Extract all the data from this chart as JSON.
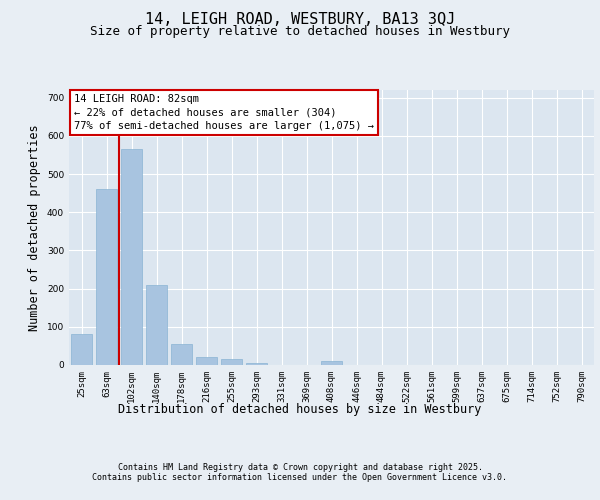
{
  "title1": "14, LEIGH ROAD, WESTBURY, BA13 3QJ",
  "title2": "Size of property relative to detached houses in Westbury",
  "xlabel": "Distribution of detached houses by size in Westbury",
  "ylabel": "Number of detached properties",
  "categories": [
    "25sqm",
    "63sqm",
    "102sqm",
    "140sqm",
    "178sqm",
    "216sqm",
    "255sqm",
    "293sqm",
    "331sqm",
    "369sqm",
    "408sqm",
    "446sqm",
    "484sqm",
    "522sqm",
    "561sqm",
    "599sqm",
    "637sqm",
    "675sqm",
    "714sqm",
    "752sqm",
    "790sqm"
  ],
  "values": [
    80,
    460,
    565,
    210,
    55,
    20,
    15,
    5,
    0,
    0,
    10,
    0,
    0,
    0,
    0,
    0,
    0,
    0,
    0,
    0,
    0
  ],
  "bar_color": "#a8c4e0",
  "bar_edge_color": "#8ab4d4",
  "vline_color": "#cc0000",
  "annotation_text": "14 LEIGH ROAD: 82sqm\n← 22% of detached houses are smaller (304)\n77% of semi-detached houses are larger (1,075) →",
  "annotation_box_color": "#ffffff",
  "annotation_box_edge_color": "#cc0000",
  "ylim": [
    0,
    720
  ],
  "yticks": [
    0,
    100,
    200,
    300,
    400,
    500,
    600,
    700
  ],
  "background_color": "#e8eef4",
  "plot_bg_color": "#dce6f0",
  "footer_line1": "Contains HM Land Registry data © Crown copyright and database right 2025.",
  "footer_line2": "Contains public sector information licensed under the Open Government Licence v3.0.",
  "title_fontsize": 11,
  "subtitle_fontsize": 9,
  "tick_fontsize": 6.5,
  "label_fontsize": 8.5,
  "footer_fontsize": 6,
  "annotation_fontsize": 7.5
}
